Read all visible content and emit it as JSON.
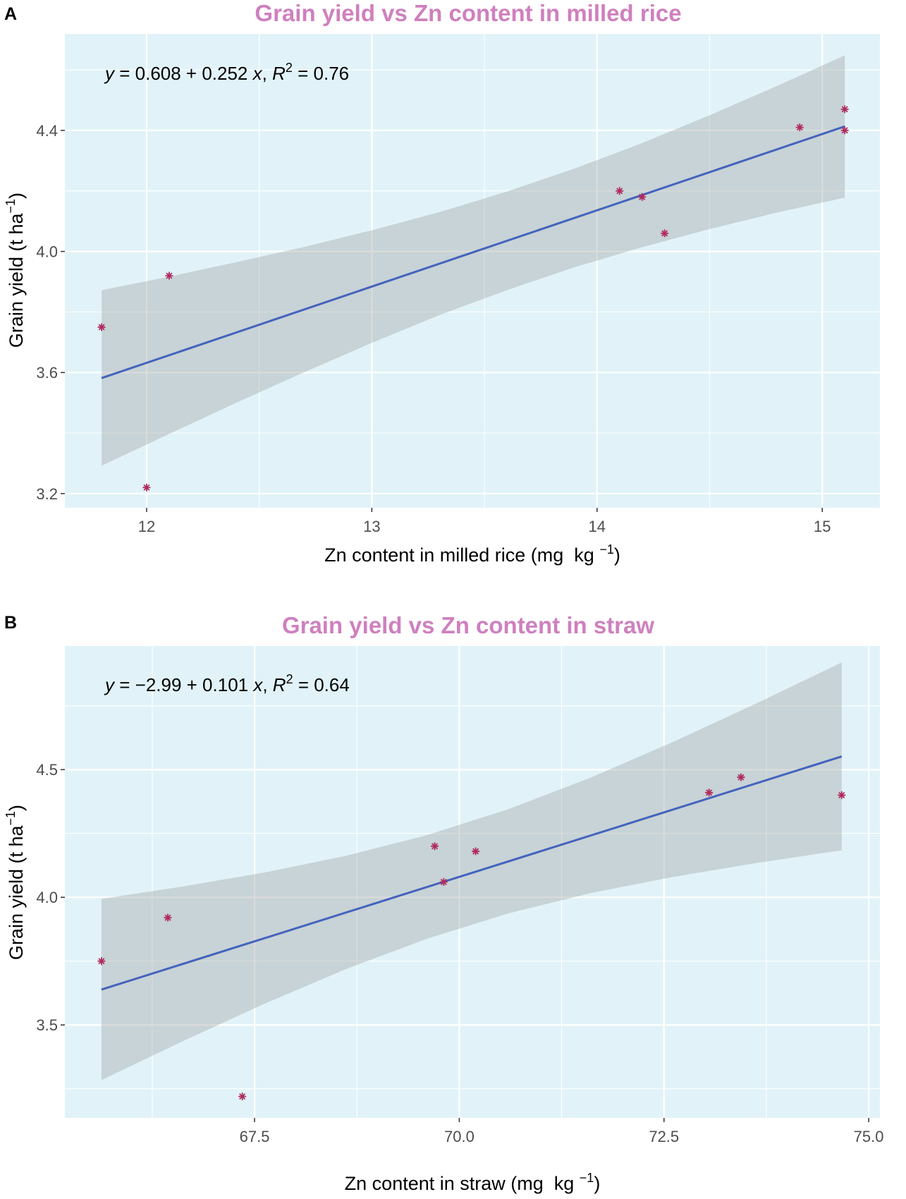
{
  "chart_data": [
    {
      "type": "scatter",
      "panel_label": "A",
      "title": "Grain yield vs Zn content in milled rice",
      "xlabel": [
        "Zn content in milled rice (mg  kg ",
        "−1",
        ")"
      ],
      "ylabel": [
        "Grain yield (t ha",
        "−1",
        ")"
      ],
      "equation": [
        "y",
        " = 0.608 + 0.252 ",
        "x",
        ", ",
        "R",
        "2",
        " = 0.76"
      ],
      "xlim": [
        11.637,
        15.256
      ],
      "ylim": [
        3.153,
        4.719
      ],
      "x_ticks": [
        12,
        13,
        14,
        15
      ],
      "x_tick_labels": [
        "12",
        "13",
        "14",
        "15"
      ],
      "y_ticks": [
        3.2,
        3.6,
        4.0,
        4.4
      ],
      "y_tick_labels": [
        "3.2",
        "3.6",
        "4.0",
        "4.4"
      ],
      "grid": true,
      "points": {
        "x": [
          11.8,
          12.0,
          12.1,
          14.1,
          14.2,
          14.3,
          14.9,
          15.1,
          15.1
        ],
        "y": [
          3.75,
          3.22,
          3.92,
          4.2,
          4.18,
          4.06,
          4.41,
          4.47,
          4.4
        ]
      },
      "fit": {
        "intercept": 0.608,
        "slope": 0.252,
        "x_range": [
          11.8,
          15.1
        ]
      },
      "confidence_band": {
        "x": [
          11.8,
          12.1,
          12.4,
          12.7,
          13.0,
          13.3,
          13.6,
          13.9,
          14.2,
          14.5,
          14.8,
          15.1
        ],
        "lower": [
          3.292,
          3.397,
          3.501,
          3.601,
          3.698,
          3.79,
          3.872,
          3.948,
          4.014,
          4.074,
          4.129,
          4.178
        ],
        "upper": [
          3.872,
          3.917,
          3.965,
          4.015,
          4.07,
          4.13,
          4.198,
          4.274,
          4.358,
          4.45,
          4.547,
          4.648
        ]
      }
    },
    {
      "type": "scatter",
      "panel_label": "B",
      "title": "Grain yield vs Zn content in straw",
      "xlabel": [
        "Zn content in straw (mg  kg ",
        "−1",
        ")"
      ],
      "ylabel": [
        "Grain yield (t ha",
        "−1",
        ")"
      ],
      "equation": [
        "y",
        " = −2.99 + 0.101 ",
        "x",
        ", ",
        "R",
        "2",
        " = 0.64"
      ],
      "xlim": [
        65.183,
        75.137
      ],
      "ylim": [
        3.136,
        4.984
      ],
      "x_ticks": [
        67.5,
        70.0,
        72.5,
        75.0
      ],
      "x_tick_labels": [
        "67.5",
        "70.0",
        "72.5",
        "75.0"
      ],
      "y_ticks": [
        3.5,
        4.0,
        4.5
      ],
      "y_tick_labels": [
        "3.5",
        "4.0",
        "4.5"
      ],
      "grid": true,
      "points": {
        "x": [
          65.63,
          66.44,
          67.35,
          69.7,
          69.81,
          70.2,
          73.05,
          73.44,
          74.67
        ],
        "y": [
          3.75,
          3.92,
          3.22,
          4.2,
          4.06,
          4.18,
          4.41,
          4.47,
          4.4
        ]
      },
      "fit": {
        "intercept": -2.99,
        "slope": 0.101,
        "x_range": [
          65.63,
          74.67
        ]
      },
      "confidence_band": {
        "x": [
          65.63,
          66.6,
          67.6,
          68.6,
          69.6,
          70.6,
          71.6,
          72.6,
          73.6,
          74.67
        ],
        "lower": [
          3.284,
          3.433,
          3.58,
          3.717,
          3.837,
          3.937,
          4.016,
          4.079,
          4.133,
          4.184
        ],
        "upper": [
          3.994,
          4.041,
          4.096,
          4.161,
          4.243,
          4.345,
          4.468,
          4.607,
          4.755,
          4.92
        ]
      }
    }
  ],
  "colors": {
    "title": "#CF80BE",
    "panel": "#E1F3F8",
    "grid": "#FFFFFF",
    "band": "#999999",
    "line": "#4563BE",
    "point": "#B02A5E",
    "tick": "#333333"
  }
}
